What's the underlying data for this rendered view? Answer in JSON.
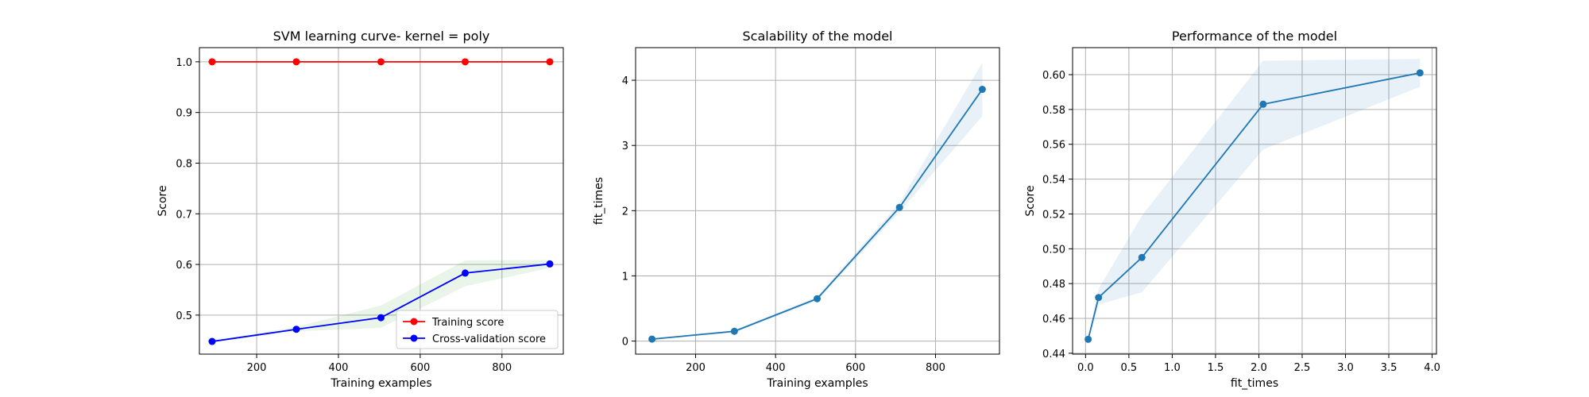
{
  "chart_data": [
    {
      "type": "line",
      "title": "SVM learning curve- kernel = poly",
      "xlabel": "Training examples",
      "ylabel": "Score",
      "xlim": [
        60,
        950
      ],
      "ylim": [
        0.423,
        1.028
      ],
      "xticks": [
        200,
        400,
        600,
        800
      ],
      "xtick_labels": [
        "200",
        "400",
        "600",
        "800"
      ],
      "yticks": [
        0.5,
        0.6,
        0.7,
        0.8,
        0.9,
        1.0
      ],
      "ytick_labels": [
        "0.5",
        "0.6",
        "0.7",
        "0.8",
        "0.9",
        "1.0"
      ],
      "grid": true,
      "legend_position": "bottom-right",
      "x": [
        91,
        297,
        504,
        710,
        917
      ],
      "series": [
        {
          "name": "Training score",
          "color": "#ff0000",
          "values": [
            1.0,
            1.0,
            1.0,
            1.0,
            1.0
          ],
          "band_lower": [
            1.0,
            1.0,
            1.0,
            1.0,
            1.0
          ],
          "band_upper": [
            1.0,
            1.0,
            1.0,
            1.0,
            1.0
          ],
          "band_color": "#ff0000"
        },
        {
          "name": "Cross-validation score",
          "color": "#0000ff",
          "values": [
            0.448,
            0.472,
            0.495,
            0.583,
            0.601
          ],
          "band_lower": [
            0.447,
            0.468,
            0.475,
            0.557,
            0.593
          ],
          "band_upper": [
            0.449,
            0.477,
            0.519,
            0.608,
            0.609
          ],
          "band_color": "#2ca02c"
        }
      ]
    },
    {
      "type": "line",
      "title": "Scalability of the model",
      "xlabel": "Training examples",
      "ylabel": "fit_times",
      "xlim": [
        50,
        960
      ],
      "ylim": [
        -0.2,
        4.5
      ],
      "xticks": [
        200,
        400,
        600,
        800
      ],
      "xtick_labels": [
        "200",
        "400",
        "600",
        "800"
      ],
      "yticks": [
        0,
        1,
        2,
        3,
        4
      ],
      "ytick_labels": [
        "0",
        "1",
        "2",
        "3",
        "4"
      ],
      "grid": true,
      "x": [
        91,
        297,
        504,
        710,
        917
      ],
      "series": [
        {
          "color": "#1f77b4",
          "values": [
            0.03,
            0.15,
            0.65,
            2.05,
            3.86
          ],
          "band_lower": [
            0.02,
            0.13,
            0.62,
            1.98,
            3.45
          ],
          "band_upper": [
            0.04,
            0.17,
            0.68,
            2.12,
            4.27
          ],
          "band_color": "#1f77b4"
        }
      ]
    },
    {
      "type": "line",
      "title": "Performance of the model",
      "xlabel": "fit_times",
      "ylabel": "Score",
      "xlim": [
        -0.15,
        4.05
      ],
      "ylim": [
        0.4395,
        0.6155
      ],
      "xticks": [
        0.0,
        0.5,
        1.0,
        1.5,
        2.0,
        2.5,
        3.0,
        3.5,
        4.0
      ],
      "xtick_labels": [
        "0.0",
        "0.5",
        "1.0",
        "1.5",
        "2.0",
        "2.5",
        "3.0",
        "3.5",
        "4.0"
      ],
      "yticks": [
        0.44,
        0.46,
        0.48,
        0.5,
        0.52,
        0.54,
        0.56,
        0.58,
        0.6
      ],
      "ytick_labels": [
        "0.44",
        "0.46",
        "0.48",
        "0.50",
        "0.52",
        "0.54",
        "0.56",
        "0.58",
        "0.60"
      ],
      "grid": true,
      "x": [
        0.03,
        0.15,
        0.65,
        2.05,
        3.86
      ],
      "series": [
        {
          "color": "#1f77b4",
          "values": [
            0.448,
            0.472,
            0.495,
            0.583,
            0.601
          ],
          "band_lower": [
            0.447,
            0.468,
            0.475,
            0.557,
            0.593
          ],
          "band_upper": [
            0.449,
            0.477,
            0.519,
            0.608,
            0.609
          ],
          "band_color": "#1f77b4"
        }
      ]
    }
  ]
}
